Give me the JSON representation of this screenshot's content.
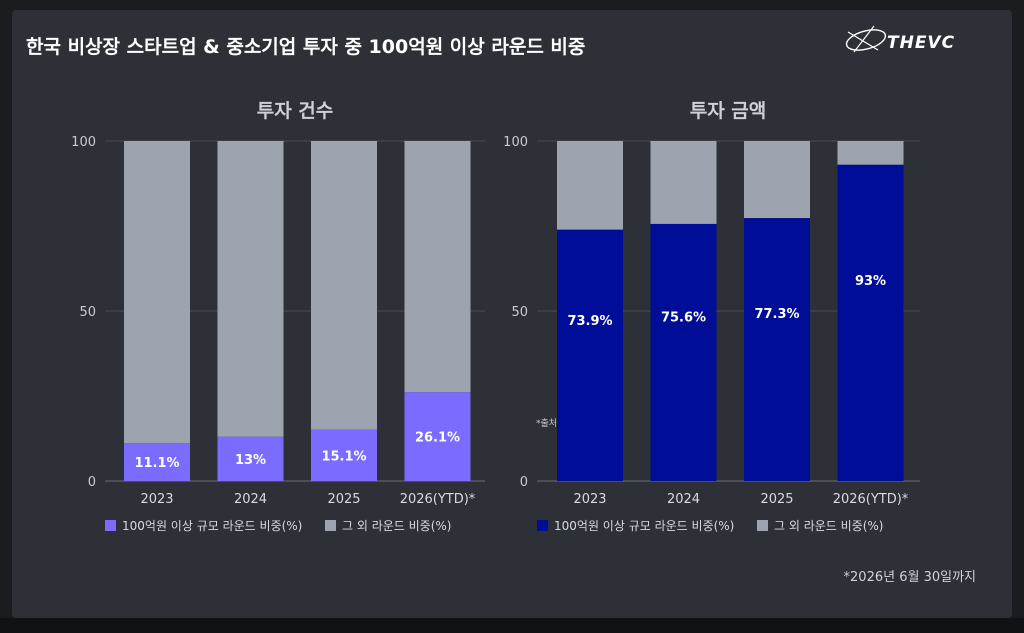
{
  "title": "한국 비상장 스타트업 & 중소기업 투자 중 100억원 이상 라운드 비중",
  "logo_text": "THEVC",
  "footnote": "*2026년 6월 30일까지",
  "partial_note": "*출처",
  "colors": {
    "background": "#2e3037",
    "other_bar": "#9ea3b0",
    "count_bar": "#7b6cff",
    "amount_bar": "#000d96",
    "grid": "#4a4d55"
  },
  "chart_data": [
    {
      "type": "bar",
      "stacked": true,
      "title": "투자 건수",
      "categories": [
        "2023",
        "2024",
        "2025",
        "2026(YTD)*"
      ],
      "ylim": [
        0,
        100
      ],
      "yticks": [
        0,
        50,
        100
      ],
      "series": [
        {
          "name": "100억원 이상 규모 라운드 비중(%)",
          "values": [
            11.1,
            13,
            15.1,
            26.1
          ],
          "labels": [
            "11.1%",
            "13%",
            "15.1%",
            "26.1%"
          ]
        },
        {
          "name": "그 외 라운드 비중(%)",
          "values": [
            88.9,
            87,
            84.9,
            73.9
          ]
        }
      ],
      "legend_position": "bottom",
      "grid": true
    },
    {
      "type": "bar",
      "stacked": true,
      "title": "투자 금액",
      "categories": [
        "2023",
        "2024",
        "2025",
        "2026(YTD)*"
      ],
      "ylim": [
        0,
        100
      ],
      "yticks": [
        0,
        50,
        100
      ],
      "series": [
        {
          "name": "100억원 이상 규모 라운드 비중(%)",
          "values": [
            73.9,
            75.6,
            77.3,
            93
          ],
          "labels": [
            "73.9%",
            "75.6%",
            "77.3%",
            "93%"
          ]
        },
        {
          "name": "그 외 라운드 비중(%)",
          "values": [
            26.1,
            24.4,
            22.7,
            7
          ]
        }
      ],
      "legend_position": "bottom",
      "grid": true
    }
  ]
}
